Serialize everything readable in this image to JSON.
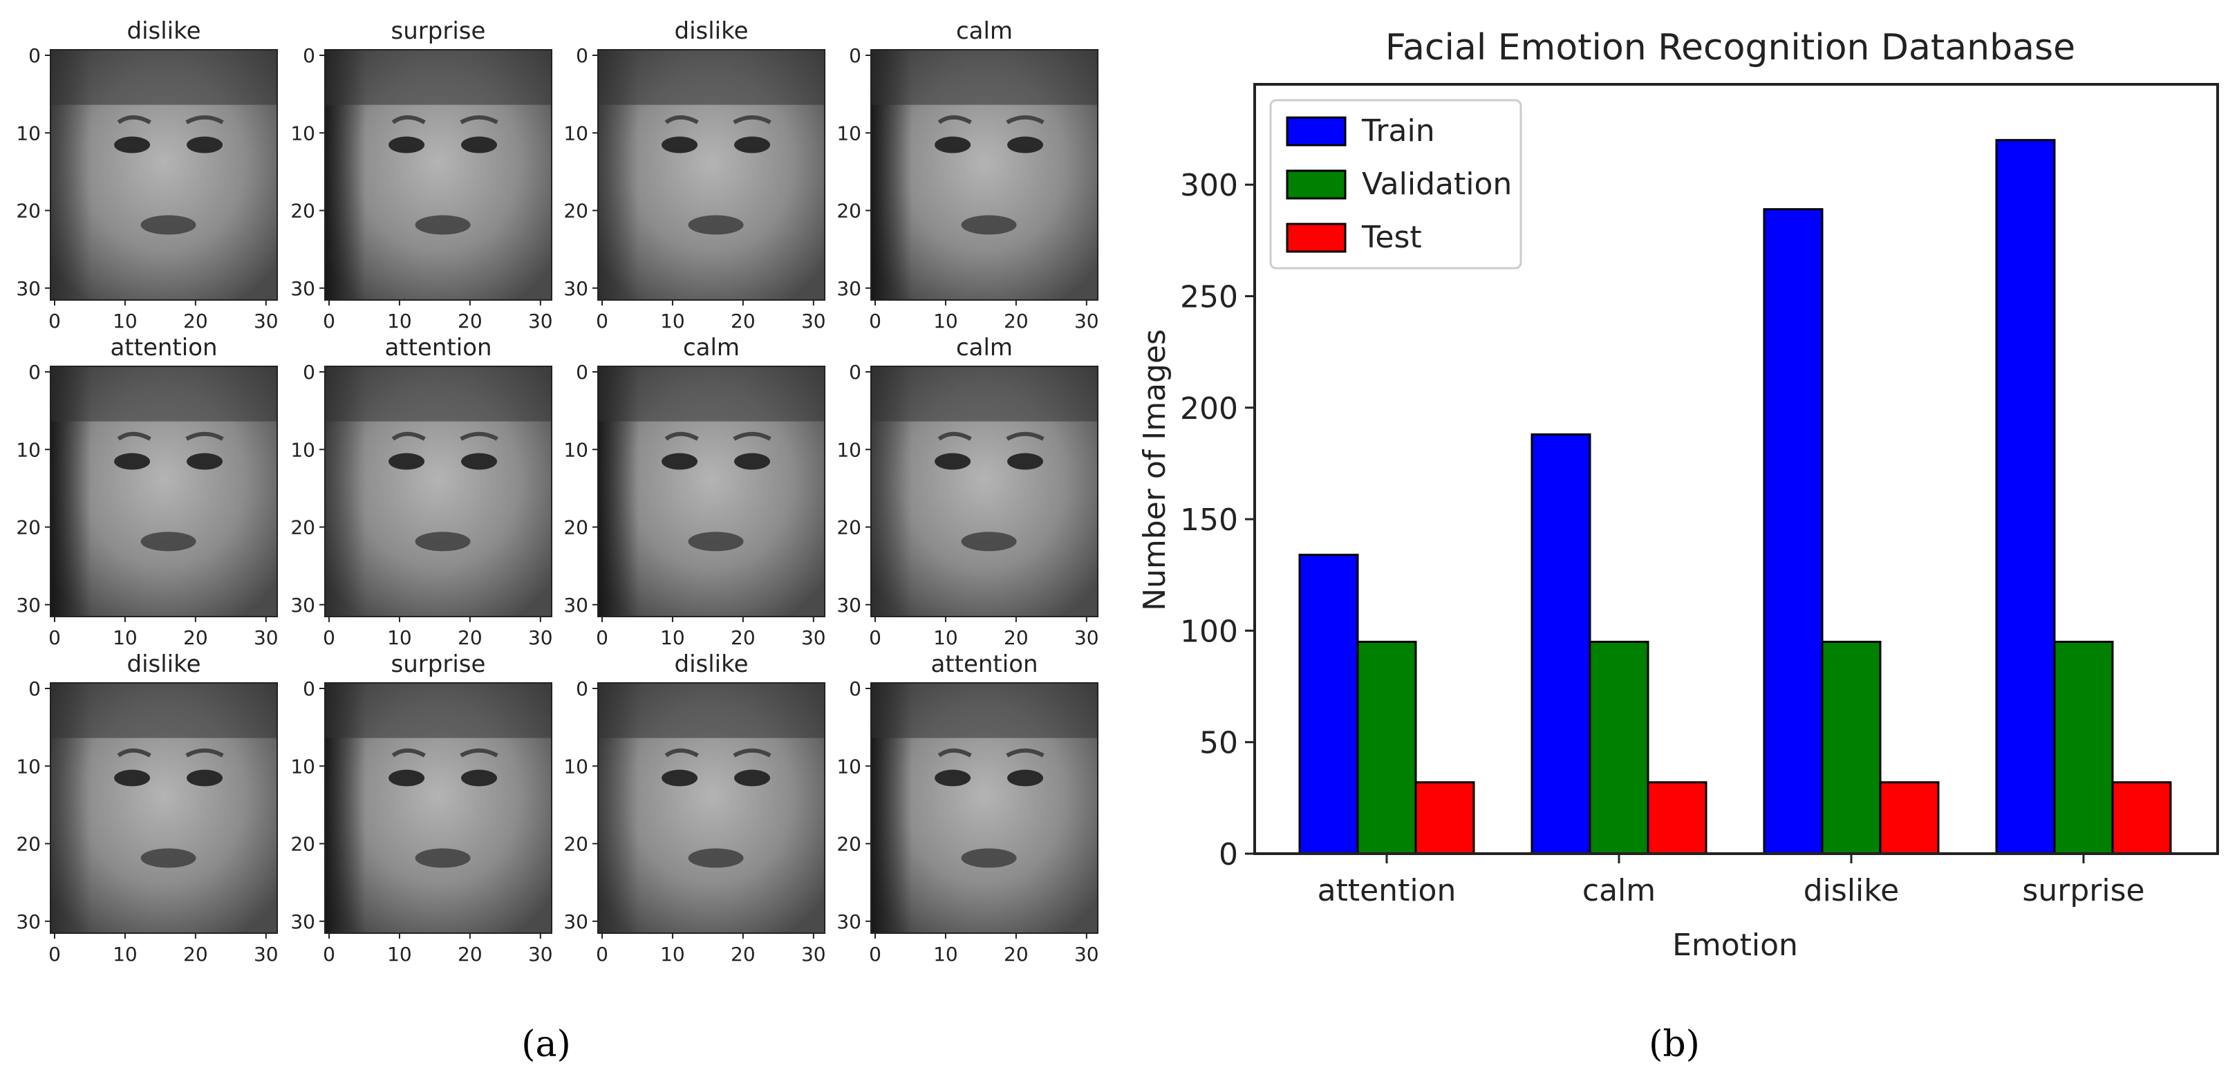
{
  "panels": {
    "left_label": "(a)",
    "right_label": "(b)"
  },
  "image_grid": {
    "axis_ticks": [
      "0",
      "10",
      "20",
      "30"
    ],
    "titles": [
      [
        "dislike",
        "surprise",
        "dislike",
        "calm"
      ],
      [
        "attention",
        "attention",
        "calm",
        "calm"
      ],
      [
        "dislike",
        "surprise",
        "dislike",
        "attention"
      ]
    ]
  },
  "chart_data": {
    "type": "bar",
    "title": "Facial Emotion Recognition Datanbase",
    "xlabel": "Emotion",
    "ylabel": "Number of Images",
    "categories": [
      "attention",
      "calm",
      "dislike",
      "surprise"
    ],
    "series": [
      {
        "name": "Train",
        "color": "#0000ff",
        "values": [
          134,
          188,
          289,
          320
        ]
      },
      {
        "name": "Validation",
        "color": "#008000",
        "values": [
          95,
          95,
          95,
          95
        ]
      },
      {
        "name": "Test",
        "color": "#ff0000",
        "values": [
          32,
          32,
          32,
          32
        ]
      }
    ],
    "ylim": [
      0,
      345
    ],
    "yticks": [
      0,
      50,
      100,
      150,
      200,
      250,
      300
    ],
    "legend_position": "top-left",
    "grid": false
  }
}
